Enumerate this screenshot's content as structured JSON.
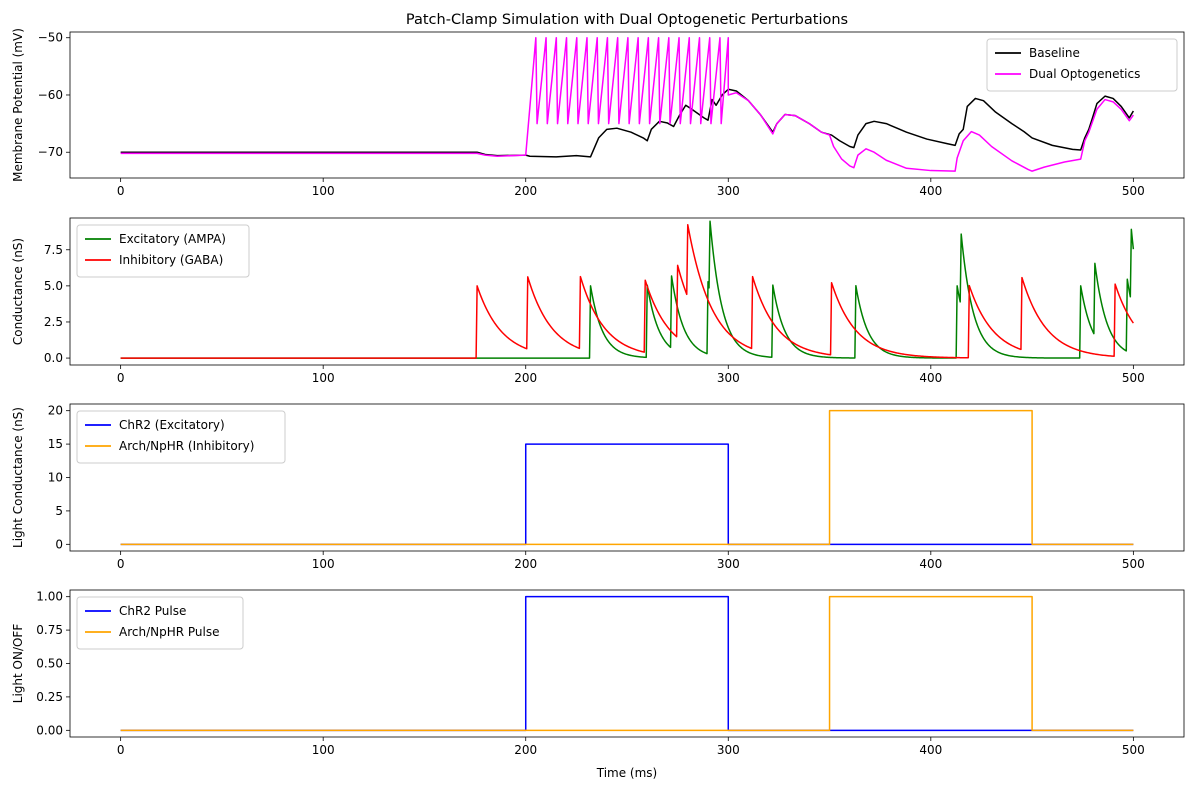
{
  "chart_data": [
    {
      "type": "line",
      "title": "Patch-Clamp Simulation with Dual Optogenetic Perturbations",
      "xlabel": "",
      "ylabel": "Membrane Potential (mV)",
      "xlim": [
        -25,
        525
      ],
      "ylim": [
        -74.5,
        -49.0
      ],
      "xticks": [
        0,
        100,
        200,
        300,
        400,
        500
      ],
      "yticks": [
        -70,
        -60,
        -50
      ],
      "legend": "top-right",
      "series": [
        {
          "name": "Baseline",
          "color": "#000000",
          "points": [
            [
              0,
              -70
            ],
            [
              176,
              -70
            ],
            [
              180,
              -70.4
            ],
            [
              186,
              -70.6
            ],
            [
              200,
              -70.5
            ],
            [
              202,
              -70.7
            ],
            [
              215,
              -70.8
            ],
            [
              225,
              -70.6
            ],
            [
              232,
              -70.8
            ],
            [
              236,
              -67.5
            ],
            [
              240,
              -66
            ],
            [
              245,
              -65.8
            ],
            [
              252,
              -66.5
            ],
            [
              258,
              -67.5
            ],
            [
              260,
              -68
            ],
            [
              262,
              -66
            ],
            [
              266,
              -64.6
            ],
            [
              270,
              -64.9
            ],
            [
              273,
              -65.5
            ],
            [
              276,
              -63.5
            ],
            [
              279,
              -61.8
            ],
            [
              282,
              -62.5
            ],
            [
              288,
              -64
            ],
            [
              290,
              -64.4
            ],
            [
              292,
              -60.8
            ],
            [
              294,
              -61.8
            ],
            [
              297,
              -60
            ],
            [
              300,
              -59
            ],
            [
              304,
              -59.3
            ],
            [
              310,
              -61
            ],
            [
              316,
              -63.5
            ],
            [
              322,
              -66.5
            ],
            [
              324,
              -65
            ],
            [
              328,
              -63.4
            ],
            [
              333,
              -63.6
            ],
            [
              340,
              -65
            ],
            [
              346,
              -66.5
            ],
            [
              351,
              -67
            ],
            [
              355,
              -68
            ],
            [
              360,
              -69
            ],
            [
              362,
              -69.2
            ],
            [
              364,
              -67
            ],
            [
              368,
              -65
            ],
            [
              372,
              -64.6
            ],
            [
              378,
              -65
            ],
            [
              388,
              -66.5
            ],
            [
              398,
              -67.7
            ],
            [
              408,
              -68.5
            ],
            [
              412,
              -68.8
            ],
            [
              414,
              -66.8
            ],
            [
              416,
              -66
            ],
            [
              418,
              -62
            ],
            [
              422,
              -60.6
            ],
            [
              426,
              -61
            ],
            [
              432,
              -63
            ],
            [
              440,
              -65
            ],
            [
              446,
              -66.4
            ],
            [
              450,
              -67.5
            ],
            [
              460,
              -68.8
            ],
            [
              470,
              -69.5
            ],
            [
              474,
              -69.6
            ],
            [
              476,
              -67.5
            ],
            [
              478,
              -66
            ],
            [
              480,
              -63.8
            ],
            [
              482,
              -61.5
            ],
            [
              486,
              -60.2
            ],
            [
              490,
              -60.6
            ],
            [
              494,
              -62
            ],
            [
              498,
              -64
            ],
            [
              500,
              -62.8
            ]
          ]
        },
        {
          "name": "Dual Optogenetics",
          "color": "#ff00ff",
          "points": [
            [
              0,
              -70.2
            ],
            [
              176,
              -70.2
            ],
            [
              180,
              -70.5
            ],
            [
              186,
              -70.7
            ],
            [
              200,
              -70.5
            ]
          ]
        }
      ]
    },
    {
      "type": "line",
      "title": "",
      "xlabel": "",
      "ylabel": "Conductance (nS)",
      "xlim": [
        -25,
        525
      ],
      "ylim": [
        -0.48,
        9.7
      ],
      "xticks": [
        0,
        100,
        200,
        300,
        400,
        500
      ],
      "yticks": [
        0.0,
        2.5,
        5.0,
        7.5
      ],
      "legend": "top-left",
      "series": [
        {
          "name": "Excitatory (AMPA)",
          "color": "#008000",
          "events": [
            232,
            260,
            272,
            290,
            291,
            322,
            363,
            413,
            415,
            474,
            481,
            497,
            499
          ],
          "amp": 5.0,
          "tau": 6
        },
        {
          "name": "Inhibitory (GABA)",
          "color": "#ff0000",
          "events": [
            176,
            201,
            227,
            259,
            275,
            280,
            312,
            351,
            419,
            445,
            491
          ],
          "amp": 5.0,
          "tau": 12
        }
      ]
    },
    {
      "type": "line",
      "title": "",
      "xlabel": "",
      "ylabel": "Light Conductance (nS)",
      "xlim": [
        -25,
        525
      ],
      "ylim": [
        -1.0,
        21.0
      ],
      "xticks": [
        0,
        100,
        200,
        300,
        400,
        500
      ],
      "yticks": [
        0,
        5,
        10,
        15,
        20
      ],
      "legend": "top-left",
      "series": [
        {
          "name": "ChR2 (Excitatory)",
          "color": "#0000ff",
          "points": [
            [
              0,
              0
            ],
            [
              200,
              0
            ],
            [
              200,
              15
            ],
            [
              300,
              15
            ],
            [
              300,
              0
            ],
            [
              500,
              0
            ]
          ]
        },
        {
          "name": "Arch/NpHR (Inhibitory)",
          "color": "#ffa500",
          "points": [
            [
              0,
              0
            ],
            [
              350,
              0
            ],
            [
              350,
              20
            ],
            [
              450,
              20
            ],
            [
              450,
              0
            ],
            [
              500,
              0
            ]
          ]
        }
      ]
    },
    {
      "type": "line",
      "title": "",
      "xlabel": "Time (ms)",
      "ylabel": "Light ON/OFF",
      "xlim": [
        -25,
        525
      ],
      "ylim": [
        -0.05,
        1.05
      ],
      "xticks": [
        0,
        100,
        200,
        300,
        400,
        500
      ],
      "yticks": [
        0.0,
        0.25,
        0.5,
        0.75,
        1.0
      ],
      "legend": "top-left",
      "series": [
        {
          "name": "ChR2 Pulse",
          "color": "#0000ff",
          "points": [
            [
              0,
              0
            ],
            [
              200,
              0
            ],
            [
              200,
              1
            ],
            [
              300,
              1
            ],
            [
              300,
              0
            ],
            [
              500,
              0
            ]
          ]
        },
        {
          "name": "Arch/NpHR Pulse",
          "color": "#ffa500",
          "points": [
            [
              0,
              0
            ],
            [
              350,
              0
            ],
            [
              350,
              1
            ],
            [
              450,
              1
            ],
            [
              450,
              0
            ],
            [
              500,
              0
            ]
          ]
        }
      ]
    }
  ]
}
